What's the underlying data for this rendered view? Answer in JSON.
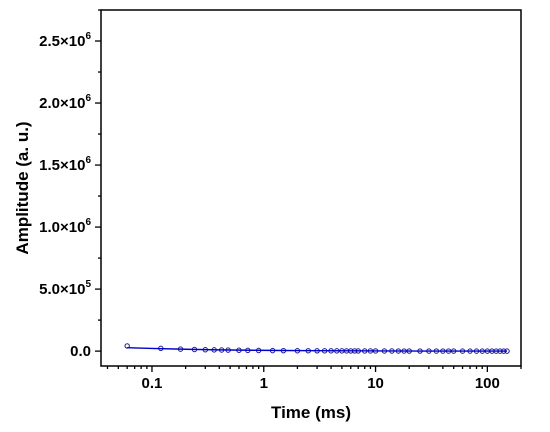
{
  "chart_data": {
    "type": "scatter",
    "xlabel": "Time (ms)",
    "ylabel": "Amplitude (a. u.)",
    "x_scale": "log",
    "xlim": [
      0.035,
      200
    ],
    "ylim": [
      -120000,
      2750000.0
    ],
    "x_ticks": [
      {
        "value": 0.1,
        "label": "0.1"
      },
      {
        "value": 1,
        "label": "1"
      },
      {
        "value": 10,
        "label": "10"
      },
      {
        "value": 100,
        "label": "100"
      }
    ],
    "y_ticks": [
      {
        "value": 0,
        "mantissa": "0.0",
        "exponent": ""
      },
      {
        "value": 500000,
        "mantissa": "5.0×10",
        "exponent": "5"
      },
      {
        "value": 1000000,
        "mantissa": "1.0×10",
        "exponent": "6"
      },
      {
        "value": 1500000,
        "mantissa": "1.5×10",
        "exponent": "6"
      },
      {
        "value": 2000000,
        "mantissa": "2.0×10",
        "exponent": "6"
      },
      {
        "value": 2500000,
        "mantissa": "2.5×10",
        "exponent": "6"
      }
    ],
    "grid": false,
    "legend": "none",
    "colors": {
      "points": "#1a1a8c",
      "fit": "#0000cc",
      "axes": "#000000"
    },
    "series": [
      {
        "marker": "open-circle",
        "x": [
          0.06,
          0.12,
          0.18,
          0.24,
          0.3,
          0.36,
          0.42,
          0.48,
          0.6,
          0.72,
          0.9,
          1.2,
          1.5,
          2,
          2.5,
          3,
          3.5,
          4,
          4.5,
          5,
          5.5,
          6,
          6.5,
          7,
          8,
          9,
          10,
          12,
          14,
          16,
          18,
          20,
          25,
          30,
          35,
          40,
          45,
          50,
          60,
          70,
          80,
          90,
          100,
          110,
          120,
          130,
          140,
          150
        ],
        "y": [
          42000,
          22000,
          16000,
          13000,
          11000,
          10000,
          9000,
          8000,
          7000,
          6000,
          5000,
          4000,
          3500,
          3000,
          2800,
          2500,
          2300,
          2200,
          2000,
          1900,
          1800,
          1700,
          1600,
          1500,
          1400,
          1300,
          1200,
          1000,
          900,
          800,
          700,
          600,
          500,
          400,
          300,
          250,
          200,
          150,
          100,
          50,
          0,
          0,
          0,
          0,
          0,
          0,
          0,
          0
        ]
      },
      {
        "marker": "line",
        "x": [
          0.06,
          0.1,
          0.2,
          0.4,
          0.8,
          1.5,
          3,
          6,
          12,
          25,
          50,
          100,
          150
        ],
        "y": [
          28000,
          22000,
          15000,
          10000,
          7000,
          5000,
          3500,
          2200,
          1200,
          500,
          150,
          20,
          0
        ]
      }
    ]
  }
}
